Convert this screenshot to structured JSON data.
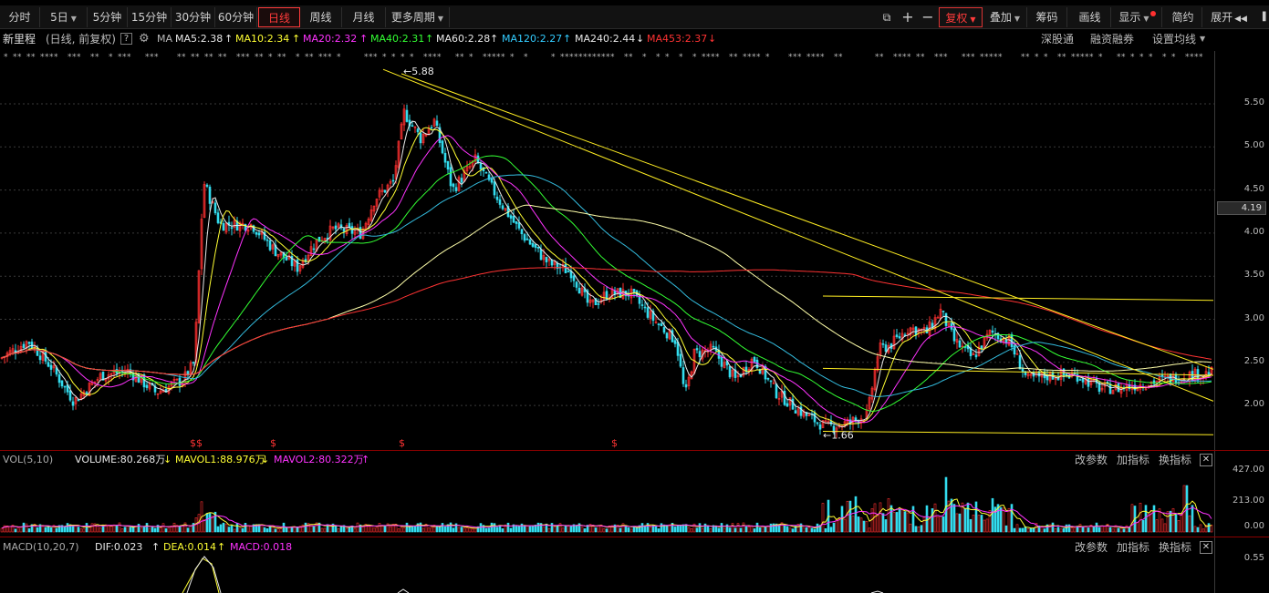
{
  "toolbar": {
    "periods": [
      {
        "label": "分时",
        "active": false
      },
      {
        "label": "5日",
        "active": false,
        "dropdown": true
      },
      {
        "label": "5分钟",
        "active": false
      },
      {
        "label": "15分钟",
        "active": false
      },
      {
        "label": "30分钟",
        "active": false
      },
      {
        "label": "60分钟",
        "active": false
      },
      {
        "label": "日线",
        "active": true
      },
      {
        "label": "周线",
        "active": false
      },
      {
        "label": "月线",
        "active": false
      },
      {
        "label": "更多周期",
        "active": false,
        "dropdown": true
      }
    ],
    "plus_icon": "plus-icon",
    "minus_icon": "minus-icon",
    "copy_icon": "copy-icon",
    "fuquan": "复权",
    "diejia": "叠加",
    "chouma": "筹码",
    "huaxian": "画线",
    "xianshi": "显示",
    "jianyue": "简约",
    "zhankai": "展开"
  },
  "info": {
    "stock_name": "新里程",
    "mode": "(日线, 前复权)",
    "help": "?",
    "ma_label": "MA",
    "ma": [
      {
        "text": "MA5:2.38",
        "arrow": "↑",
        "color": "#e8e8e8"
      },
      {
        "text": "MA10:2.34",
        "arrow": "↑",
        "color": "#ffff33"
      },
      {
        "text": "MA20:2.32",
        "arrow": "↑",
        "color": "#ff33ff"
      },
      {
        "text": "MA40:2.31",
        "arrow": "↑",
        "color": "#33ff33"
      },
      {
        "text": "MA60:2.28",
        "arrow": "↑",
        "color": "#e8e8e8"
      },
      {
        "text": "MA120:2.27",
        "arrow": "↑",
        "color": "#33ccff"
      },
      {
        "text": "MA240:2.44",
        "arrow": "↓",
        "color": "#e8e8e8"
      },
      {
        "text": "MA453:2.37",
        "arrow": "↓",
        "color": "#ff3333"
      }
    ],
    "right_links": [
      "深股通",
      "融资融券",
      "设置均线"
    ]
  },
  "price_axis": [
    "5.50",
    "5.00",
    "4.50",
    "4.00",
    "3.50",
    "3.00",
    "2.50",
    "2.00"
  ],
  "current_price": "4.19",
  "annotations": {
    "high": "5.88",
    "low": "1.66"
  },
  "volume": {
    "title": "VOL(5,10)",
    "volume": "VOLUME:80.268万",
    "mavol1": "MAVOL1:88.976万",
    "mavol2": "MAVOL2:80.322万",
    "mavol1_arrow": "↓",
    "mavol2_arrow": "↑",
    "axis": [
      "427.00",
      "213.00",
      "0.00"
    ]
  },
  "macd": {
    "title": "MACD(10,20,7)",
    "dif": "DIF:0.023",
    "dea": "DEA:0.014",
    "macd": "MACD:0.018",
    "dif_arrow": "↑",
    "dea_arrow": "↑",
    "axis": [
      "0.55"
    ]
  },
  "panel_buttons": [
    "改参数",
    "加指标",
    "换指标"
  ],
  "colors": {
    "up": "#ff3030",
    "down": "#33ddee",
    "ma_yellow": "#ffff66",
    "ma_red": "#ff3333",
    "ma_cyan": "#33bbdd",
    "trend": "#ffee22"
  }
}
